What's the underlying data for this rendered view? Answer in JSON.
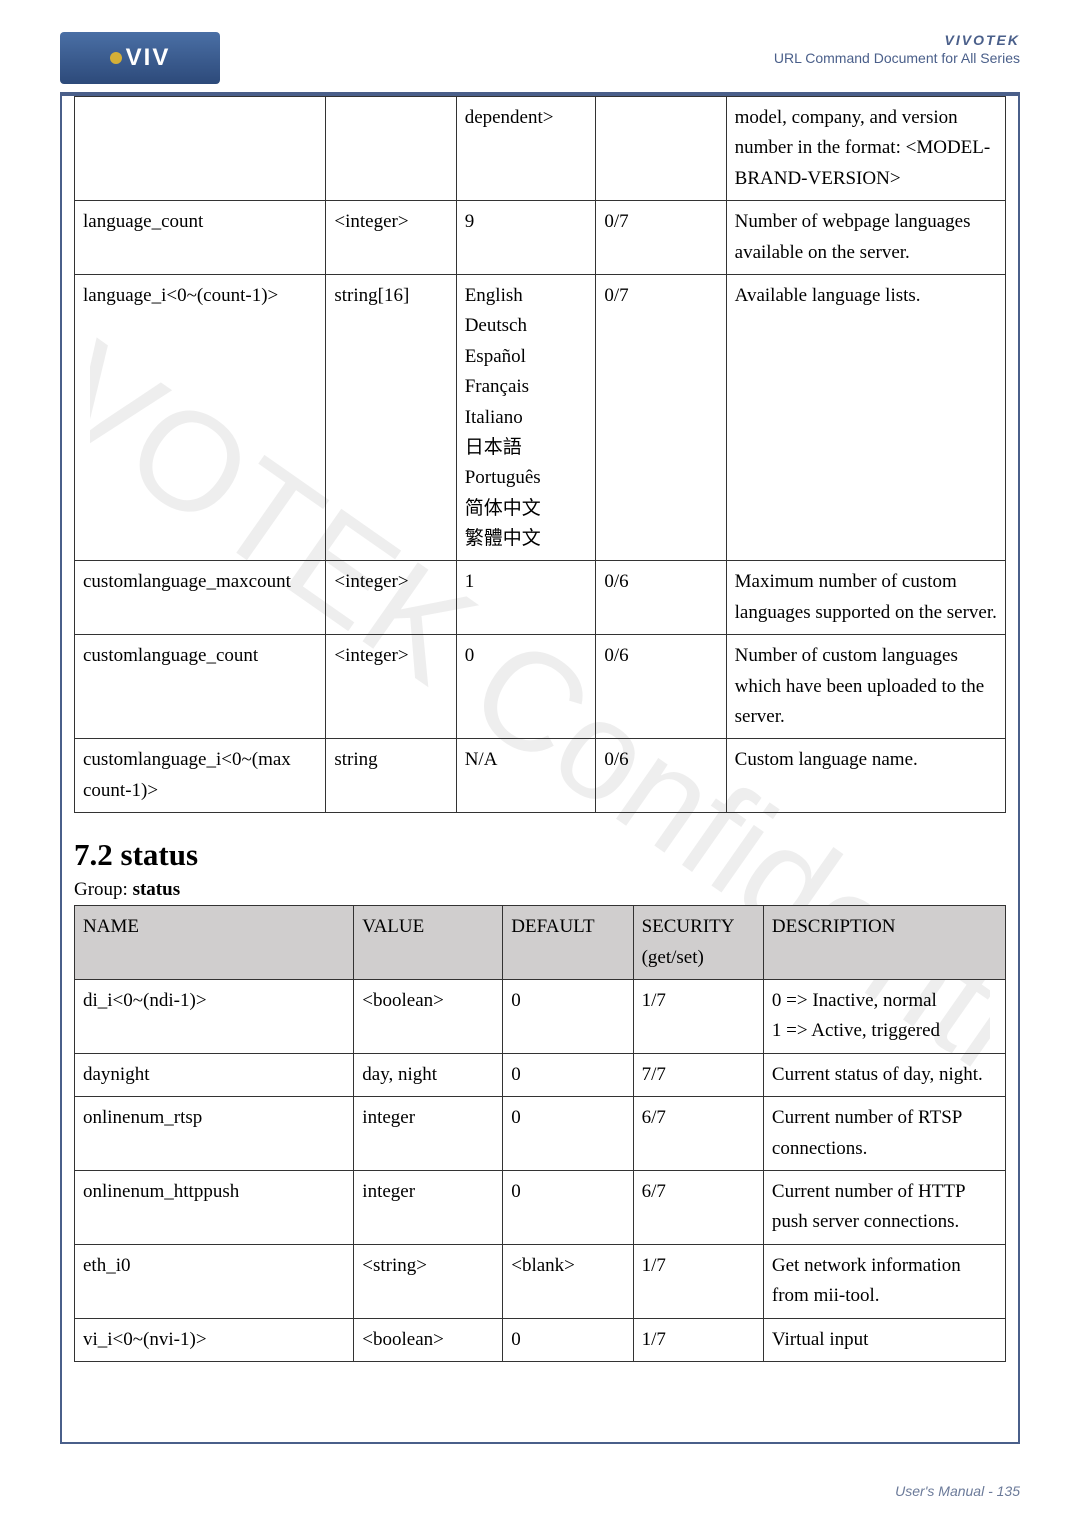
{
  "header": {
    "brand": "VIVOTEK",
    "subtitle": "URL Command Document for All Series",
    "logo_text": "VIV"
  },
  "table1": {
    "rows": [
      {
        "name": "",
        "value": "",
        "default": "dependent>",
        "security": "",
        "desc": "model, company, and version number in the format: <MODEL-BRAND-VERSION>"
      },
      {
        "name": "language_count",
        "value": "<integer>",
        "default": "9",
        "security": "0/7",
        "desc": "Number of webpage languages available on the server."
      },
      {
        "name": "language_i<0~(count-1)>",
        "value": "string[16]",
        "default": "English\nDeutsch\nEspañol\nFrançais\nItaliano\n日本語\nPortuguês\n简体中文\n繁體中文",
        "security": "0/7",
        "desc": "Available language lists."
      },
      {
        "name": "customlanguage_maxcount",
        "value": "<integer>",
        "default": "1",
        "security": "0/6",
        "desc": "Maximum number of custom languages supported on the server."
      },
      {
        "name": "customlanguage_count",
        "value": "<integer>",
        "default": "0",
        "security": "0/6",
        "desc": "Number of custom languages which have been uploaded to the server."
      },
      {
        "name": "customlanguage_i<0~(max count-1)>",
        "value": "string",
        "default": "N/A",
        "security": "0/6",
        "desc": "Custom language name."
      }
    ]
  },
  "section": {
    "heading": "7.2 status",
    "group": "Group: ",
    "group_bold": "status"
  },
  "table2": {
    "headers": {
      "name": "NAME",
      "value": "VALUE",
      "default": "DEFAULT",
      "security": "SECURITY (get/set)",
      "desc": "DESCRIPTION"
    },
    "rows": [
      {
        "name": "di_i<0~(ndi-1)>",
        "value": "<boolean>",
        "default": "0",
        "security": "1/7",
        "desc": "0 => Inactive, normal\n1 => Active, triggered"
      },
      {
        "name": "daynight",
        "value": "day, night",
        "default": "0",
        "security": "7/7",
        "desc": "Current status of day, night."
      },
      {
        "name": "onlinenum_rtsp",
        "value": "integer",
        "default": "0",
        "security": "6/7",
        "desc": "Current number of RTSP connections."
      },
      {
        "name": "onlinenum_httppush",
        "value": "integer",
        "default": "0",
        "security": "6/7",
        "desc": "Current number of HTTP push server connections."
      },
      {
        "name": "eth_i0",
        "value": "<string>",
        "default": "<blank>",
        "security": "1/7",
        "desc": "Get network information from mii-tool."
      },
      {
        "name": "vi_i<0~(nvi-1)>",
        "value": "<boolean>",
        "default": "0",
        "security": "1/7",
        "desc": "Virtual input"
      }
    ]
  },
  "footer": "User's Manual - 135"
}
